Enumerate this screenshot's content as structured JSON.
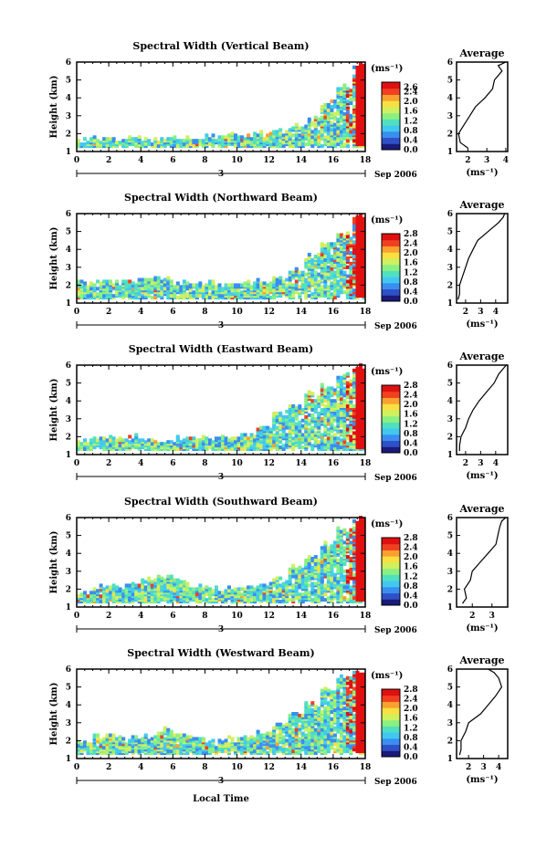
{
  "figure": {
    "xlabel": "Local Time",
    "date_label": "Sep 2006",
    "day_marker": "3",
    "colorbar_unit": "(ms⁻¹)",
    "average_title": "Average",
    "average_xlabel": "(ms⁻¹)",
    "ylabel": "Height (km)"
  },
  "colormap": [
    "#1a1a7a",
    "#3050c8",
    "#3a8ef0",
    "#42c8f0",
    "#50e0c0",
    "#8cf080",
    "#d0f060",
    "#f8e040",
    "#f8a030",
    "#f04020",
    "#e01010"
  ],
  "chart_data": [
    {
      "type": "heatmap",
      "title": "Spectral Width (Vertical Beam)",
      "x_ticks": [
        "0",
        "2",
        "4",
        "6",
        "8",
        "10",
        "12",
        "14",
        "16",
        "18"
      ],
      "xlim": [
        0,
        18
      ],
      "y_ticks": [
        "1",
        "2",
        "3",
        "4",
        "5",
        "6"
      ],
      "ylim": [
        1,
        6
      ],
      "colorbar_ticks": [
        "2.6",
        "2.4",
        "2.0",
        "1.6",
        "1.2",
        "0.8",
        "0.4",
        "0.0"
      ],
      "colorbar_range": [
        0,
        2.8
      ],
      "coverage_top_km": [
        1.5,
        1.6,
        1.6,
        1.7,
        1.6,
        1.7,
        1.7,
        1.6,
        1.7,
        1.8,
        1.8,
        1.9,
        2.0,
        2.3,
        2.8,
        3.6,
        4.5,
        5.8
      ],
      "average": {
        "x_ticks": [
          "2",
          "3",
          "4"
        ],
        "xlim": [
          1.4,
          4.1
        ],
        "y_ticks": [
          "1",
          "2",
          "3",
          "4",
          "5",
          "6"
        ],
        "heights": [
          1.2,
          1.5,
          2.0,
          2.5,
          3.0,
          3.5,
          4.0,
          4.5,
          5.0,
          5.5,
          5.8,
          6.0
        ],
        "values": [
          2.0,
          1.6,
          1.5,
          1.8,
          2.1,
          2.4,
          2.9,
          3.3,
          3.4,
          3.8,
          3.6,
          4.0
        ]
      }
    },
    {
      "type": "heatmap",
      "title": "Spectral Width (Northward Beam)",
      "x_ticks": [
        "0",
        "2",
        "4",
        "6",
        "8",
        "10",
        "12",
        "14",
        "16",
        "18"
      ],
      "xlim": [
        0,
        18
      ],
      "y_ticks": [
        "1",
        "2",
        "3",
        "4",
        "5",
        "6"
      ],
      "ylim": [
        1,
        6
      ],
      "colorbar_ticks": [
        "2.8",
        "2.4",
        "2.0",
        "1.6",
        "1.2",
        "0.8",
        "0.4",
        "0.0"
      ],
      "colorbar_range": [
        0,
        2.8
      ],
      "coverage_top_km": [
        2.0,
        2.1,
        2.0,
        2.1,
        2.2,
        2.2,
        2.0,
        2.0,
        2.0,
        1.9,
        2.0,
        2.1,
        2.3,
        2.8,
        3.5,
        4.2,
        4.8,
        5.8
      ],
      "average": {
        "x_ticks": [
          "2",
          "3",
          "4"
        ],
        "xlim": [
          1.4,
          4.8
        ],
        "y_ticks": [
          "1",
          "2",
          "3",
          "4",
          "5",
          "6"
        ],
        "heights": [
          1.2,
          1.5,
          2.0,
          2.5,
          3.0,
          3.5,
          4.0,
          4.5,
          5.0,
          5.5,
          5.8,
          6.0
        ],
        "values": [
          1.5,
          1.6,
          1.6,
          1.8,
          2.0,
          2.2,
          2.5,
          2.8,
          3.5,
          4.2,
          4.5,
          4.6
        ]
      }
    },
    {
      "type": "heatmap",
      "title": "Spectral Width (Eastward Beam)",
      "x_ticks": [
        "0",
        "2",
        "4",
        "6",
        "8",
        "10",
        "12",
        "14",
        "16",
        "18"
      ],
      "xlim": [
        0,
        18
      ],
      "y_ticks": [
        "1",
        "2",
        "3",
        "4",
        "5",
        "6"
      ],
      "ylim": [
        1,
        6
      ],
      "colorbar_ticks": [
        "2.8",
        "2.4",
        "2.0",
        "1.6",
        "1.2",
        "0.8",
        "0.4",
        "0.0"
      ],
      "colorbar_range": [
        0,
        2.8
      ],
      "coverage_top_km": [
        1.7,
        1.8,
        1.9,
        1.9,
        1.8,
        1.7,
        1.8,
        1.8,
        1.8,
        1.9,
        2.0,
        2.4,
        3.3,
        3.7,
        4.3,
        4.7,
        5.3,
        5.8
      ],
      "average": {
        "x_ticks": [
          "2",
          "3",
          "4"
        ],
        "xlim": [
          1.4,
          4.8
        ],
        "y_ticks": [
          "1",
          "2",
          "3",
          "4",
          "5",
          "6"
        ],
        "heights": [
          1.2,
          1.5,
          2.0,
          2.5,
          3.0,
          3.5,
          4.0,
          4.5,
          5.0,
          5.5,
          5.8,
          6.0
        ],
        "values": [
          1.6,
          1.6,
          1.7,
          2.0,
          2.2,
          2.5,
          2.9,
          3.4,
          3.9,
          4.2,
          4.5,
          4.7
        ]
      }
    },
    {
      "type": "heatmap",
      "title": "Spectral Width (Southward Beam)",
      "x_ticks": [
        "0",
        "2",
        "4",
        "6",
        "8",
        "10",
        "12",
        "14",
        "16",
        "18"
      ],
      "xlim": [
        0,
        18
      ],
      "y_ticks": [
        "1",
        "2",
        "3",
        "4",
        "5",
        "6"
      ],
      "ylim": [
        1,
        6
      ],
      "colorbar_ticks": [
        "2.8",
        "2.4",
        "2.0",
        "1.6",
        "1.2",
        "0.8",
        "0.4",
        "0.0"
      ],
      "colorbar_range": [
        0,
        2.8
      ],
      "coverage_top_km": [
        1.7,
        2.0,
        2.0,
        2.1,
        2.4,
        2.6,
        2.3,
        2.0,
        1.9,
        1.9,
        2.0,
        2.2,
        2.5,
        3.1,
        3.7,
        4.5,
        5.2,
        5.8
      ],
      "average": {
        "x_ticks": [
          "2",
          "3"
        ],
        "xlim": [
          1.2,
          3.8
        ],
        "y_ticks": [
          "1",
          "2",
          "3",
          "4",
          "5",
          "6"
        ],
        "heights": [
          1.2,
          1.5,
          2.0,
          2.5,
          3.0,
          3.5,
          4.0,
          4.5,
          5.0,
          5.5,
          5.8,
          6.0
        ],
        "values": [
          1.5,
          1.7,
          1.6,
          1.9,
          2.0,
          2.4,
          2.8,
          3.2,
          3.3,
          3.4,
          3.5,
          3.7
        ]
      }
    },
    {
      "type": "heatmap",
      "title": "Spectral Width (Westward Beam)",
      "x_ticks": [
        "0",
        "2",
        "4",
        "6",
        "8",
        "10",
        "12",
        "14",
        "16",
        "18"
      ],
      "xlim": [
        0,
        18
      ],
      "y_ticks": [
        "1",
        "2",
        "3",
        "4",
        "5",
        "6"
      ],
      "ylim": [
        1,
        6
      ],
      "colorbar_ticks": [
        "2.8",
        "2.4",
        "2.0",
        "1.6",
        "1.2",
        "0.8",
        "0.4",
        "0.0"
      ],
      "colorbar_range": [
        0,
        2.8
      ],
      "coverage_top_km": [
        1.8,
        2.1,
        2.2,
        2.0,
        2.1,
        2.5,
        2.2,
        2.0,
        1.9,
        2.0,
        2.1,
        2.3,
        2.8,
        3.4,
        4.0,
        4.7,
        5.4,
        5.8
      ],
      "average": {
        "x_ticks": [
          "2",
          "3",
          "4"
        ],
        "xlim": [
          1.2,
          4.6
        ],
        "y_ticks": [
          "1",
          "2",
          "3",
          "4",
          "5",
          "6"
        ],
        "heights": [
          1.2,
          1.5,
          2.0,
          2.5,
          3.0,
          3.5,
          4.0,
          4.5,
          5.0,
          5.5,
          5.8,
          6.0
        ],
        "values": [
          1.4,
          1.5,
          1.5,
          1.8,
          2.0,
          2.8,
          3.3,
          3.8,
          4.2,
          4.0,
          3.7,
          3.3
        ]
      }
    }
  ]
}
